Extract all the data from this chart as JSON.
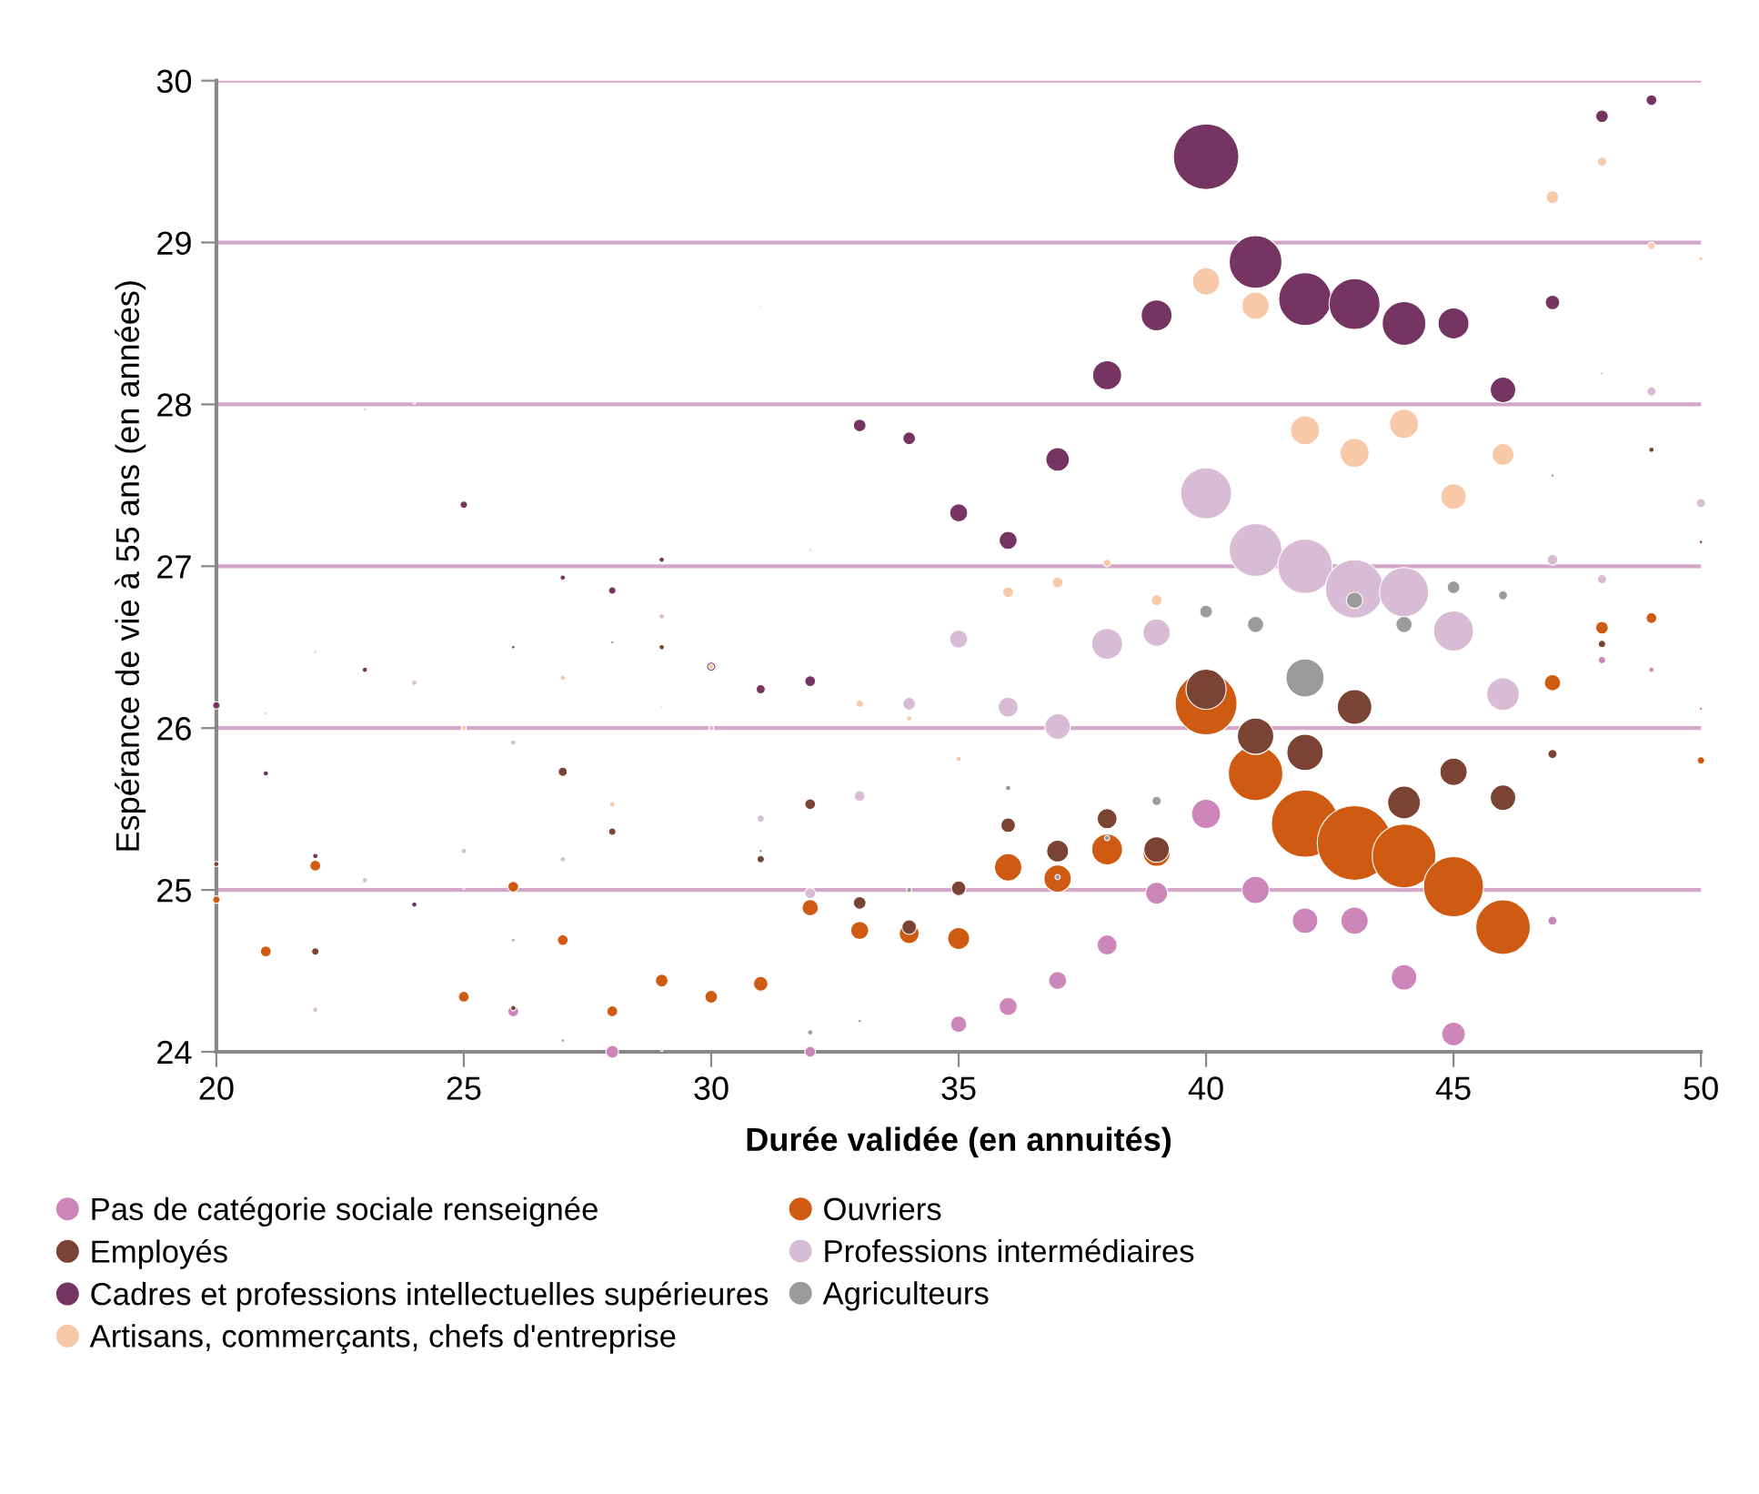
{
  "chart_data": {
    "type": "bubble",
    "xlabel": "Durée validée (en annuités)",
    "ylabel": "Espérance de vie à 55 ans (en années)",
    "xlim": [
      20,
      50
    ],
    "xticks": [
      20,
      25,
      30,
      35,
      40,
      45,
      50
    ],
    "ylim": [
      24,
      30
    ],
    "yticks": [
      24,
      25,
      26,
      27,
      28,
      29,
      30
    ],
    "grid": "y",
    "legend": "bottom",
    "series": [
      {
        "name": "Pas de catégorie sociale renseignée",
        "color": "#cd86b9",
        "x": [
          26,
          28,
          32,
          35,
          36,
          37,
          38,
          39,
          40,
          41,
          42,
          43,
          44,
          45,
          47,
          48,
          49,
          50
        ],
        "values": [
          24.25,
          24.0,
          24.0,
          24.17,
          24.28,
          24.44,
          24.66,
          24.98,
          25.47,
          25.0,
          24.81,
          24.81,
          24.46,
          24.11,
          24.81,
          26.42,
          26.36,
          26.12
        ],
        "sizes": [
          0.021,
          0.029,
          0.021,
          0.048,
          0.059,
          0.059,
          0.072,
          0.086,
          0.152,
          0.134,
          0.117,
          0.134,
          0.117,
          0.1,
          0.015,
          0.01,
          0.005,
          0.002
        ]
      },
      {
        "name": "Ouvriers",
        "color": "#cf5b12",
        "x": [
          20,
          21,
          22,
          25,
          26,
          27,
          28,
          29,
          30,
          31,
          32,
          33,
          34,
          35,
          36,
          37,
          38,
          39,
          40,
          41,
          42,
          43,
          44,
          45,
          46,
          47,
          48,
          49,
          50
        ],
        "values": [
          24.94,
          24.62,
          25.15,
          24.34,
          25.02,
          24.69,
          24.25,
          24.44,
          24.34,
          24.42,
          24.89,
          24.75,
          24.73,
          24.7,
          25.14,
          25.07,
          25.25,
          25.23,
          26.15,
          25.72,
          25.41,
          25.29,
          25.21,
          25.02,
          24.77,
          26.28,
          26.62,
          26.68,
          25.8
        ],
        "sizes": [
          0.01,
          0.021,
          0.021,
          0.021,
          0.021,
          0.021,
          0.021,
          0.029,
          0.029,
          0.038,
          0.048,
          0.059,
          0.072,
          0.086,
          0.134,
          0.134,
          0.172,
          0.134,
          0.688,
          0.535,
          0.814,
          1,
          0.729,
          0.648,
          0.535,
          0.048,
          0.029,
          0.021,
          0.01
        ]
      },
      {
        "name": "Employés",
        "color": "#7a4333",
        "x": [
          20,
          22,
          26,
          27,
          28,
          29,
          31,
          32,
          33,
          34,
          35,
          36,
          37,
          38,
          39,
          40,
          41,
          42,
          43,
          44,
          45,
          46,
          47,
          48,
          49,
          50
        ],
        "values": [
          25.16,
          24.62,
          24.27,
          25.73,
          25.36,
          26.5,
          25.19,
          25.53,
          24.92,
          24.77,
          25.01,
          25.4,
          25.24,
          25.44,
          25.25,
          26.24,
          25.95,
          25.85,
          26.13,
          25.54,
          25.73,
          25.57,
          25.84,
          26.52,
          27.72,
          27.15
        ],
        "sizes": [
          0.005,
          0.01,
          0.005,
          0.015,
          0.01,
          0.005,
          0.01,
          0.021,
          0.029,
          0.038,
          0.038,
          0.038,
          0.086,
          0.072,
          0.117,
          0.288,
          0.238,
          0.238,
          0.215,
          0.193,
          0.134,
          0.117,
          0.015,
          0.01,
          0.005,
          0.002
        ]
      },
      {
        "name": "Professions intermédiaires",
        "color": "#d8bcd6",
        "x": [
          22,
          23,
          24,
          25,
          26,
          27,
          29,
          30,
          31,
          32,
          33,
          34,
          35,
          36,
          37,
          38,
          39,
          40,
          41,
          42,
          43,
          44,
          45,
          46,
          47,
          48,
          49,
          50
        ],
        "values": [
          24.26,
          25.06,
          26.28,
          25.24,
          25.91,
          25.19,
          26.69,
          26.0,
          25.44,
          24.98,
          25.58,
          26.15,
          26.55,
          26.13,
          26.01,
          26.52,
          26.59,
          27.45,
          27.1,
          27.0,
          26.86,
          26.84,
          26.6,
          26.21,
          27.04,
          26.92,
          28.08,
          27.39
        ],
        "sizes": [
          0.005,
          0.005,
          0.005,
          0.005,
          0.005,
          0.005,
          0.005,
          0.005,
          0.01,
          0.021,
          0.021,
          0.029,
          0.059,
          0.072,
          0.117,
          0.172,
          0.134,
          0.466,
          0.5,
          0.535,
          0.609,
          0.434,
          0.288,
          0.193,
          0.021,
          0.015,
          0.015,
          0.015
        ]
      },
      {
        "name": "Cadres et professions intellectuelles supérieures",
        "color": "#753462",
        "x": [
          20,
          21,
          22,
          23,
          24,
          25,
          26,
          27,
          28,
          29,
          30,
          31,
          32,
          33,
          34,
          35,
          36,
          37,
          38,
          39,
          40,
          41,
          42,
          43,
          44,
          45,
          46,
          47,
          48,
          49
        ],
        "values": [
          26.14,
          25.72,
          25.21,
          26.36,
          24.91,
          27.38,
          26.5,
          26.93,
          26.85,
          27.04,
          26.38,
          26.24,
          26.29,
          27.87,
          27.79,
          27.33,
          27.16,
          27.66,
          28.18,
          28.55,
          29.53,
          28.88,
          28.65,
          28.62,
          28.5,
          28.5,
          28.09,
          28.63,
          29.78,
          29.88
        ],
        "sizes": [
          0.01,
          0.005,
          0.005,
          0.005,
          0.005,
          0.01,
          0.002,
          0.005,
          0.01,
          0.005,
          0.015,
          0.015,
          0.021,
          0.029,
          0.029,
          0.059,
          0.059,
          0.1,
          0.152,
          0.172,
          0.771,
          0.5,
          0.5,
          0.466,
          0.343,
          0.172,
          0.117,
          0.038,
          0.029,
          0.021
        ]
      },
      {
        "name": "Agriculteurs",
        "color": "#9b9b9b",
        "x": [
          25,
          26,
          27,
          28,
          29,
          31,
          32,
          33,
          34,
          36,
          37,
          38,
          39,
          40,
          41,
          42,
          43,
          44,
          45,
          46,
          47,
          48
        ],
        "values": [
          25.01,
          24.69,
          24.07,
          26.53,
          24.01,
          25.24,
          24.12,
          24.19,
          25.0,
          25.63,
          25.08,
          25.32,
          25.55,
          26.72,
          26.64,
          26.31,
          26.79,
          26.64,
          26.87,
          26.82,
          27.56,
          28.19
        ],
        "sizes": [
          0.001,
          0.002,
          0.002,
          0.002,
          0.001,
          0.002,
          0.005,
          0.002,
          0.005,
          0.005,
          0.005,
          0.005,
          0.015,
          0.029,
          0.048,
          0.262,
          0.048,
          0.048,
          0.029,
          0.015,
          0.002,
          0.001
        ]
      },
      {
        "name": "Artisans, commerçants, chefs d'entreprise",
        "color": "#f8c9a9",
        "x": [
          21,
          22,
          23,
          24,
          25,
          27,
          28,
          29,
          30,
          31,
          32,
          33,
          34,
          35,
          36,
          37,
          38,
          39,
          40,
          41,
          42,
          43,
          44,
          45,
          46,
          47,
          48,
          49,
          50
        ],
        "values": [
          26.09,
          26.47,
          27.97,
          28.01,
          26.0,
          26.31,
          25.53,
          26.13,
          26.38,
          28.6,
          27.1,
          26.15,
          26.06,
          25.81,
          26.84,
          26.9,
          27.02,
          26.79,
          28.76,
          28.61,
          27.84,
          27.7,
          27.88,
          27.43,
          27.69,
          29.28,
          29.5,
          28.98,
          28.9
        ],
        "sizes": [
          0.002,
          0.002,
          0.002,
          0.001,
          0.005,
          0.005,
          0.005,
          0.001,
          0.005,
          0.001,
          0.002,
          0.01,
          0.005,
          0.005,
          0.021,
          0.021,
          0.01,
          0.021,
          0.134,
          0.134,
          0.152,
          0.152,
          0.152,
          0.117,
          0.086,
          0.029,
          0.015,
          0.01,
          0.003
        ]
      }
    ]
  }
}
